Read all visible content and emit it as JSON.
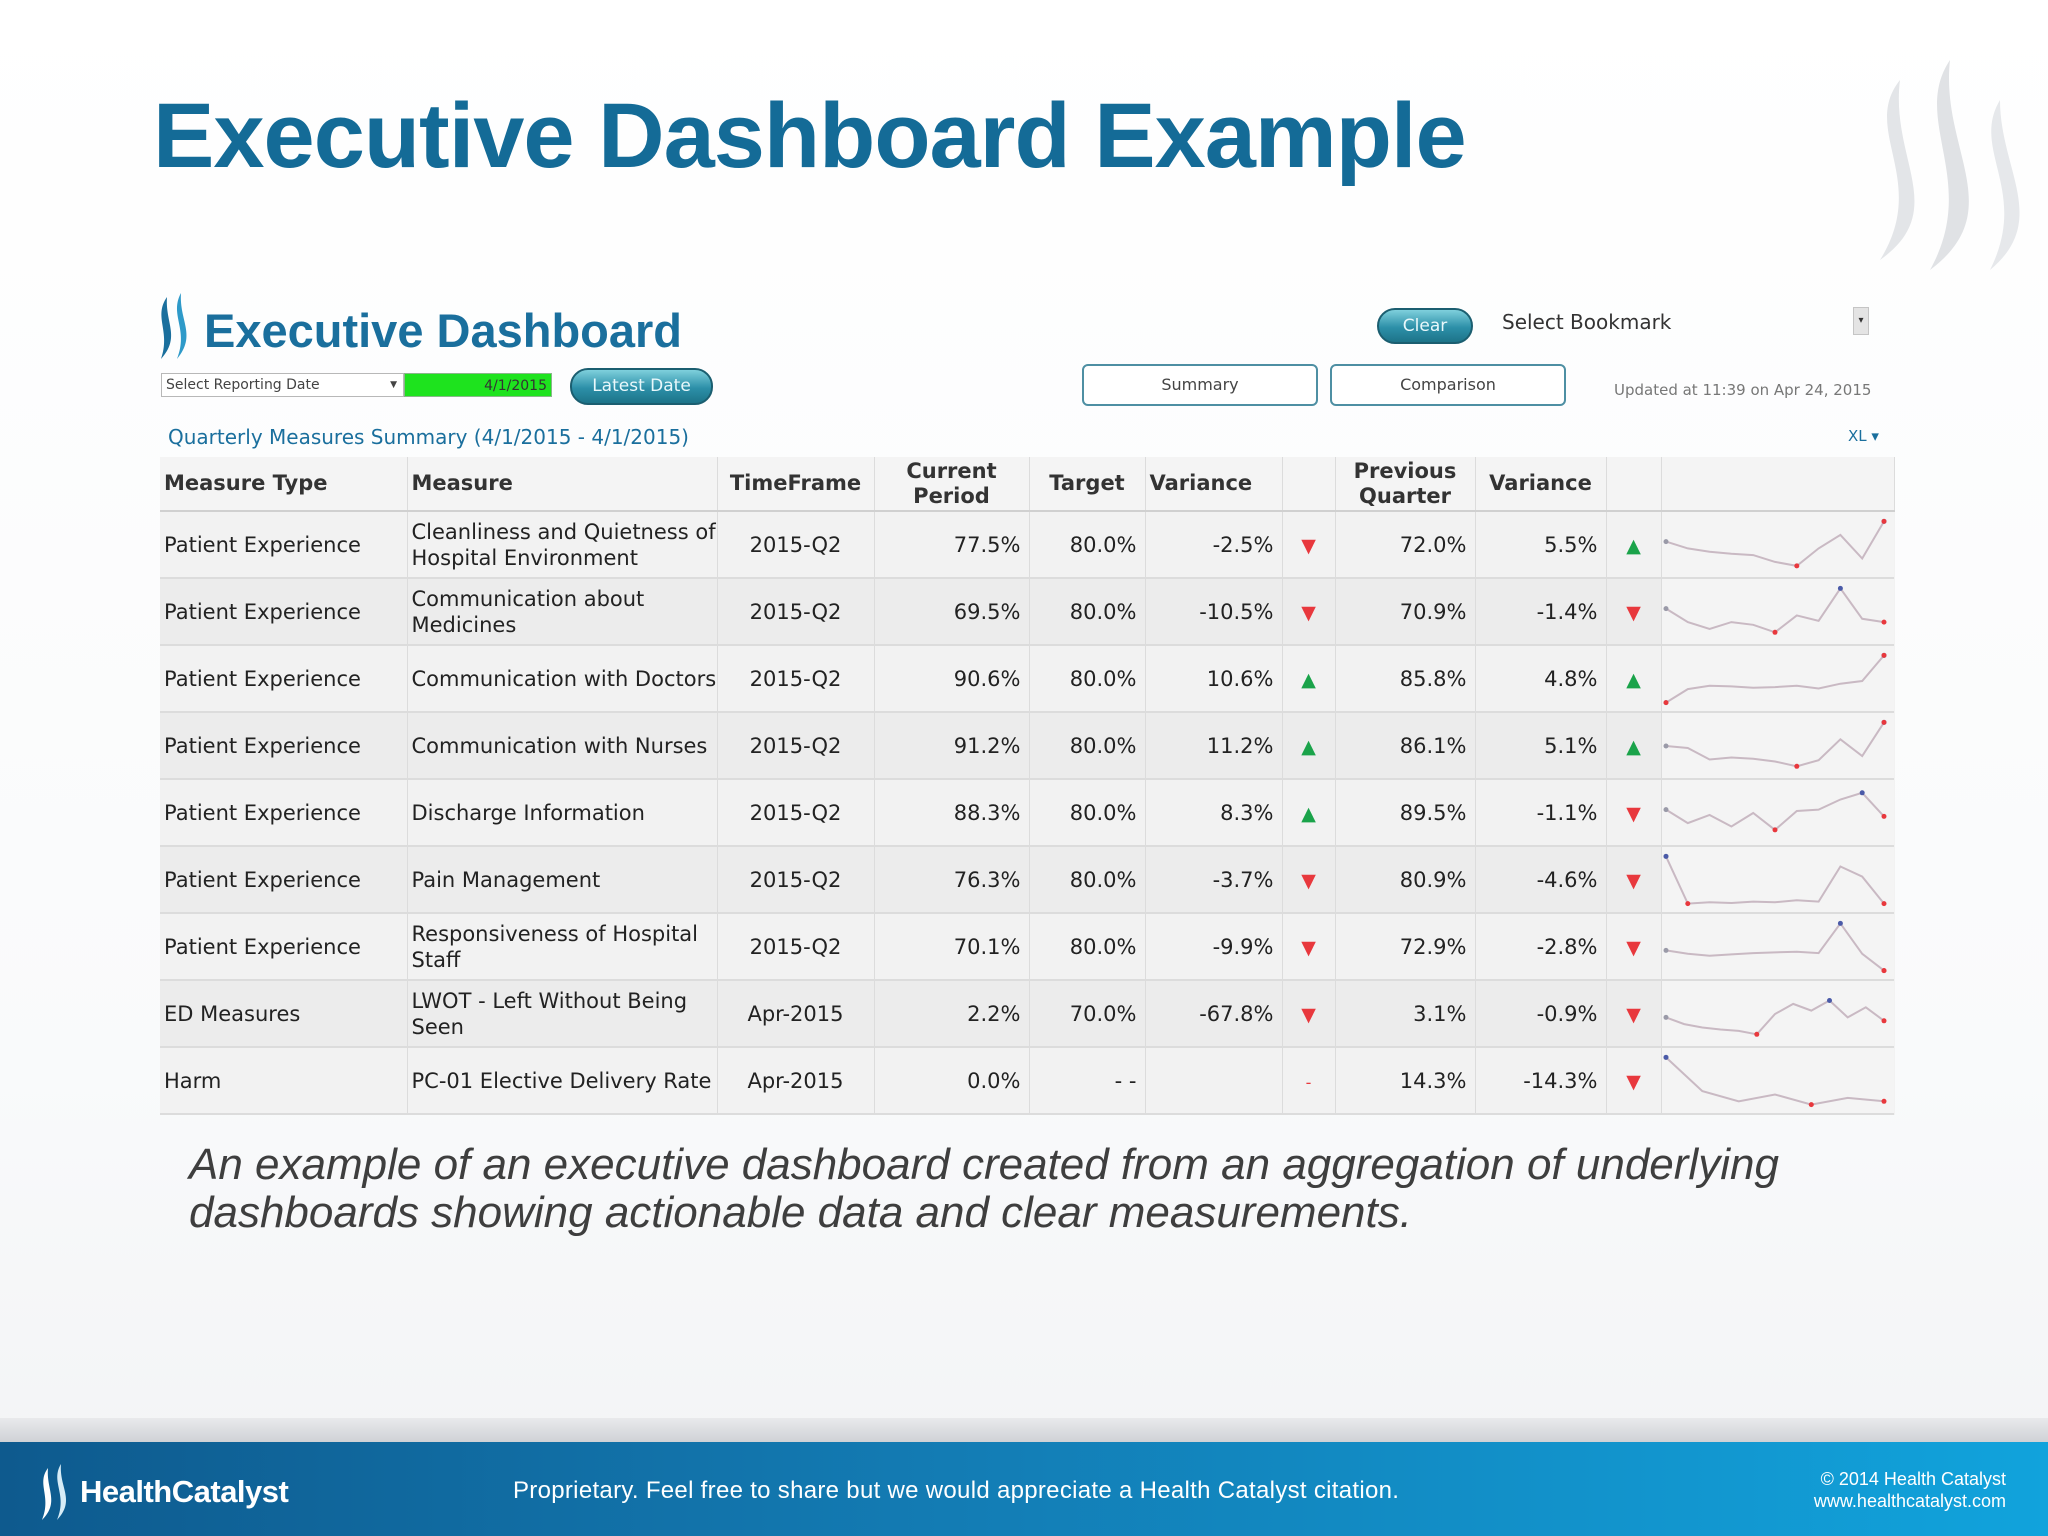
{
  "slide": {
    "title": "Executive Dashboard Example",
    "caption": "An example of an executive dashboard created from an aggregation of underlying dashboards showing actionable data and clear measurements."
  },
  "dashboard": {
    "title": "Executive Dashboard",
    "clear_label": "Clear",
    "bookmark_label": "Select Bookmark",
    "date_select_label": "Select Reporting Date",
    "date_value": "4/1/2015",
    "latest_date_label": "Latest Date",
    "summary_tab": "Summary",
    "comparison_tab": "Comparison",
    "updated_text": "Updated at 11:39 on Apr 24, 2015",
    "section_title": "Quarterly Measures Summary (4/1/2015 - 4/1/2015)",
    "xl_label": "XL ▾",
    "columns": {
      "measure_type": "Measure Type",
      "measure": "Measure",
      "timeframe": "TimeFrame",
      "current_period": "Current Period",
      "target": "Target",
      "variance": "Variance",
      "previous_quarter": "Previous Quarter",
      "variance2": "Variance"
    },
    "rows": [
      {
        "type": "Patient Experience",
        "measure": "Cleanliness and Quietness of Hospital Environment",
        "timeframe": "2015-Q2",
        "current": "77.5%",
        "target": "80.0%",
        "variance": "-2.5%",
        "var_dir": "down",
        "previous": "72.0%",
        "variance2": "5.5%",
        "var2_dir": "up",
        "trend": [
          5,
          4,
          3.5,
          3.2,
          3,
          2,
          1.4,
          4,
          6,
          2.5,
          8
        ]
      },
      {
        "type": "Patient Experience",
        "measure": "Communication about Medicines",
        "timeframe": "2015-Q2",
        "current": "69.5%",
        "target": "80.0%",
        "variance": "-10.5%",
        "var_dir": "down",
        "previous": "70.9%",
        "variance2": "-1.4%",
        "var2_dir": "down",
        "trend": [
          5,
          3,
          2,
          3,
          2.6,
          1.5,
          4,
          3.2,
          8,
          3.5,
          3
        ]
      },
      {
        "type": "Patient Experience",
        "measure": "Communication with Doctors",
        "timeframe": "2015-Q2",
        "current": "90.6%",
        "target": "80.0%",
        "variance": "10.6%",
        "var_dir": "up",
        "previous": "85.8%",
        "variance2": "4.8%",
        "var2_dir": "up",
        "trend": [
          1,
          3,
          3.5,
          3.4,
          3.2,
          3.3,
          3.5,
          3.1,
          3.8,
          4.2,
          8
        ]
      },
      {
        "type": "Patient Experience",
        "measure": "Communication with Nurses",
        "timeframe": "2015-Q2",
        "current": "91.2%",
        "target": "80.0%",
        "variance": "11.2%",
        "var_dir": "up",
        "previous": "86.1%",
        "variance2": "5.1%",
        "var2_dir": "up",
        "trend": [
          4.5,
          4.2,
          2.5,
          2.8,
          2.6,
          2.2,
          1.5,
          2.4,
          5.5,
          3,
          8
        ]
      },
      {
        "type": "Patient Experience",
        "measure": "Discharge Information",
        "timeframe": "2015-Q2",
        "current": "88.3%",
        "target": "80.0%",
        "variance": "8.3%",
        "var_dir": "up",
        "previous": "89.5%",
        "variance2": "-1.1%",
        "var2_dir": "down",
        "trend": [
          5,
          3,
          4.2,
          2.5,
          4.5,
          2,
          4.8,
          5,
          6.5,
          7.5,
          4
        ]
      },
      {
        "type": "Patient Experience",
        "measure": "Pain Management",
        "timeframe": "2015-Q2",
        "current": "76.3%",
        "target": "80.0%",
        "variance": "-3.7%",
        "var_dir": "down",
        "previous": "80.9%",
        "variance2": "-4.6%",
        "var2_dir": "down",
        "trend": [
          8,
          1,
          1.2,
          1.1,
          1.3,
          1.2,
          1.5,
          1.3,
          6.5,
          5,
          1
        ]
      },
      {
        "type": "Patient Experience",
        "measure": "Responsiveness of Hospital Staff",
        "timeframe": "2015-Q2",
        "current": "70.1%",
        "target": "80.0%",
        "variance": "-9.9%",
        "var_dir": "down",
        "previous": "72.9%",
        "variance2": "-2.8%",
        "var2_dir": "down",
        "trend": [
          4,
          3.5,
          3.2,
          3.4,
          3.6,
          3.7,
          3.8,
          3.6,
          8,
          3.5,
          1
        ]
      },
      {
        "type": "ED Measures",
        "measure": "LWOT - Left Without Being Seen",
        "timeframe": "Apr-2015",
        "current": "2.2%",
        "target": "70.0%",
        "variance": "-67.8%",
        "var_dir": "down",
        "previous": "3.1%",
        "variance2": "-0.9%",
        "var2_dir": "down",
        "trend": [
          4,
          3,
          2.5,
          2.2,
          2,
          1.5,
          4.5,
          6,
          5,
          6.5,
          4,
          5.5,
          3.5
        ]
      },
      {
        "type": "Harm",
        "measure": "PC-01 Elective Delivery Rate",
        "timeframe": "Apr-2015",
        "current": "0.0%",
        "target": "- -",
        "variance": "",
        "var_dir": "none",
        "previous": "14.3%",
        "variance2": "-14.3%",
        "var2_dir": "down",
        "trend": [
          8,
          3,
          1.5,
          2.5,
          1,
          2,
          1.5
        ]
      }
    ]
  },
  "footer": {
    "brand": "HealthCatalyst",
    "note": "Proprietary. Feel free to share but we would appreciate a Health Catalyst citation.",
    "copyright": "© 2014 Health Catalyst",
    "website": "www.healthcatalyst.com"
  },
  "colors": {
    "title_blue": "#146b97",
    "up_green": "#1aa34a",
    "down_red": "#e8383d",
    "highlight_green": "#1ee31e"
  }
}
